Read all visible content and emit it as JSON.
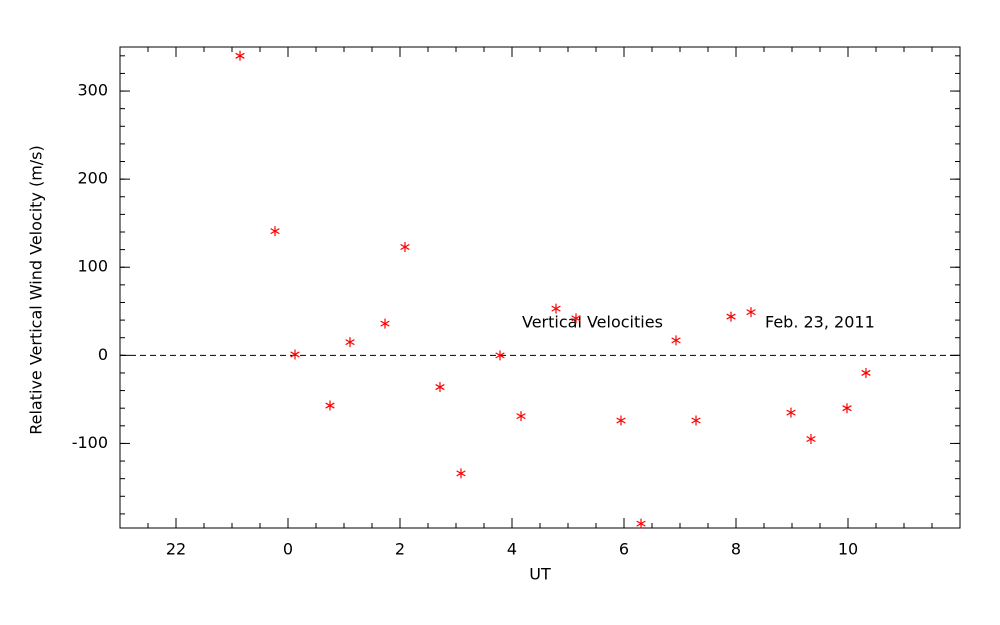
{
  "chart_data": {
    "type": "scatter",
    "x_label": "UT",
    "y_label": "Relative Vertical Wind Velocity (m/s)",
    "annotations": [
      "Vertical Velocities",
      "Feb. 23, 2011"
    ],
    "series": [
      {
        "color": "#ff0000",
        "marker": "asterisk",
        "x": [
          -0.857,
          -0.232,
          0.125,
          0.75,
          1.107,
          1.732,
          2.089,
          2.714,
          3.089,
          3.786,
          4.161,
          4.786,
          5.143,
          5.946,
          6.304,
          6.929,
          7.286,
          7.911,
          8.268,
          8.982,
          9.339,
          9.982,
          10.321
        ],
        "values": [
          340,
          141,
          1,
          -57,
          15,
          36,
          123,
          -36,
          -134,
          0,
          -69,
          53,
          42,
          -74,
          -191,
          17,
          -74,
          44,
          49,
          -65,
          -95,
          -60,
          -20
        ]
      }
    ],
    "reference_line": {
      "y": 0,
      "style": "dashed"
    },
    "xlim": [
      -3,
      12
    ],
    "xticks": [
      {
        "value": -2,
        "label": "22"
      },
      0,
      2,
      4,
      6,
      8,
      10
    ],
    "xminor": 4,
    "ylim": [
      -196,
      350
    ],
    "yticks": [
      -100,
      0,
      100,
      200,
      300
    ],
    "yminor": 5,
    "grid": false
  }
}
